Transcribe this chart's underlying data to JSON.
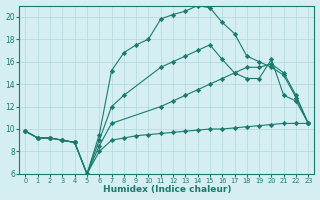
{
  "xlabel": "Humidex (Indice chaleur)",
  "bg_color": "#d4eef1",
  "line_color": "#1a7a6e",
  "grid_color": "#afd8dc",
  "xlim": [
    -0.5,
    23.5
  ],
  "ylim": [
    6,
    21
  ],
  "xticks": [
    0,
    1,
    2,
    3,
    4,
    5,
    6,
    7,
    8,
    9,
    10,
    11,
    12,
    13,
    14,
    15,
    16,
    17,
    18,
    19,
    20,
    21,
    22,
    23
  ],
  "yticks": [
    6,
    8,
    10,
    12,
    14,
    16,
    18,
    20
  ],
  "series": [
    {
      "x": [
        0,
        1,
        2,
        3,
        4,
        5,
        6,
        7,
        8,
        9,
        10,
        11,
        12,
        13,
        14,
        15,
        16,
        17,
        18,
        19,
        20,
        21,
        22,
        23
      ],
      "y": [
        9.8,
        9.2,
        9.2,
        9.0,
        8.8,
        6.0,
        8.0,
        9.0,
        9.2,
        9.4,
        9.5,
        9.6,
        9.7,
        9.8,
        9.9,
        10.0,
        10.0,
        10.1,
        10.2,
        10.3,
        10.4,
        10.5,
        10.5,
        10.5
      ]
    },
    {
      "x": [
        0,
        1,
        2,
        3,
        4,
        5,
        6,
        7,
        11,
        12,
        13,
        14,
        15,
        16,
        17,
        18,
        19,
        20,
        21,
        22,
        23
      ],
      "y": [
        9.8,
        9.2,
        9.2,
        9.0,
        8.8,
        6.0,
        8.5,
        10.5,
        12.0,
        12.5,
        13.0,
        13.5,
        14.0,
        14.5,
        15.0,
        15.5,
        15.5,
        15.8,
        15.0,
        13.0,
        10.5
      ]
    },
    {
      "x": [
        0,
        1,
        2,
        3,
        4,
        5,
        6,
        7,
        8,
        11,
        12,
        13,
        14,
        15,
        16,
        17,
        18,
        19,
        20,
        21,
        22,
        23
      ],
      "y": [
        9.8,
        9.2,
        9.2,
        9.0,
        8.8,
        6.0,
        9.0,
        12.0,
        13.0,
        15.5,
        16.0,
        16.5,
        17.0,
        17.5,
        16.2,
        15.0,
        14.5,
        14.5,
        16.2,
        13.0,
        12.5,
        10.5
      ]
    },
    {
      "x": [
        0,
        1,
        2,
        3,
        4,
        5,
        6,
        7,
        8,
        9,
        10,
        11,
        12,
        13,
        14,
        15,
        16,
        17,
        18,
        19,
        20,
        21,
        22,
        23
      ],
      "y": [
        9.8,
        9.2,
        9.2,
        9.0,
        8.8,
        6.0,
        9.5,
        15.2,
        16.8,
        17.5,
        18.0,
        19.8,
        20.2,
        20.5,
        21.0,
        20.8,
        19.5,
        18.5,
        16.5,
        16.0,
        15.5,
        14.8,
        12.8,
        10.5
      ]
    }
  ]
}
